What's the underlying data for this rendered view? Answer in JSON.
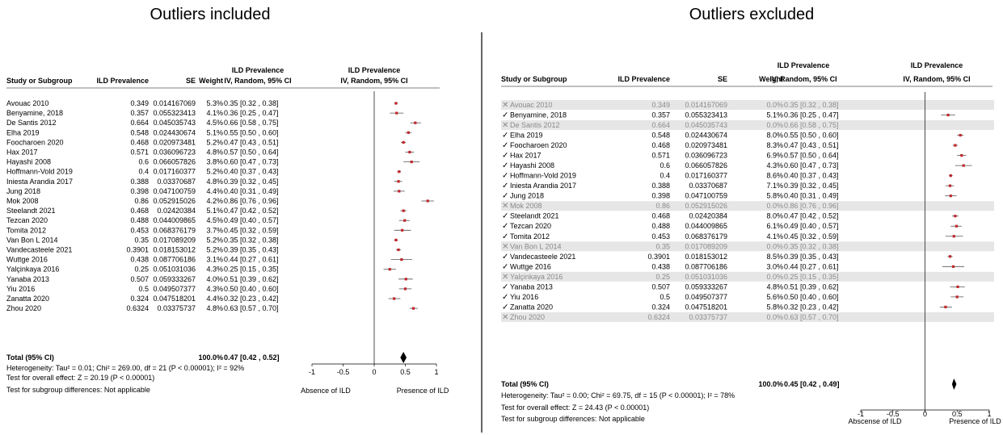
{
  "panels": [
    {
      "heading": "Outliers included",
      "columns": {
        "study": "Study or Subgroup",
        "prev": "ILD Prevalence",
        "se": "SE",
        "weight": "Weight",
        "ci_line1": "ILD Prevalence",
        "ci_line2": "IV, Random, 95% CI",
        "plot_line1": "ILD Prevalence",
        "plot_line2": "IV, Random, 95% CI"
      },
      "rows": [
        {
          "study": "Avouac 2010",
          "prev": "0.349",
          "se": "0.014167069",
          "weight": "5.3%",
          "ci": "0.35 [0.32 , 0.38]",
          "est": 0.35,
          "lo": 0.32,
          "hi": 0.38
        },
        {
          "study": "Benyamine, 2018",
          "prev": "0.357",
          "se": "0.055323413",
          "weight": "4.1%",
          "ci": "0.36 [0.25 , 0.47]",
          "est": 0.36,
          "lo": 0.25,
          "hi": 0.47
        },
        {
          "study": "De Santis 2012",
          "prev": "0.664",
          "se": "0.045035743",
          "weight": "4.5%",
          "ci": "0.66 [0.58 , 0.75]",
          "est": 0.66,
          "lo": 0.58,
          "hi": 0.75
        },
        {
          "study": "Elha 2019",
          "prev": "0.548",
          "se": "0.024430674",
          "weight": "5.1%",
          "ci": "0.55 [0.50 , 0.60]",
          "est": 0.55,
          "lo": 0.5,
          "hi": 0.6
        },
        {
          "study": "Foocharoen 2020",
          "prev": "0.468",
          "se": "0.020973481",
          "weight": "5.2%",
          "ci": "0.47 [0.43 , 0.51]",
          "est": 0.47,
          "lo": 0.43,
          "hi": 0.51
        },
        {
          "study": "Hax 2017",
          "prev": "0.571",
          "se": "0.036096723",
          "weight": "4.8%",
          "ci": "0.57 [0.50 , 0.64]",
          "est": 0.57,
          "lo": 0.5,
          "hi": 0.64
        },
        {
          "study": "Hayashi 2008",
          "prev": "0.6",
          "se": "0.066057826",
          "weight": "3.8%",
          "ci": "0.60 [0.47 , 0.73]",
          "est": 0.6,
          "lo": 0.47,
          "hi": 0.73
        },
        {
          "study": "Hoffmann-Vold 2019",
          "prev": "0.4",
          "se": "0.017160377",
          "weight": "5.2%",
          "ci": "0.40 [0.37 , 0.43]",
          "est": 0.4,
          "lo": 0.37,
          "hi": 0.43
        },
        {
          "study": "Iniesta Arandia 2017",
          "prev": "0.388",
          "se": "0.03370687",
          "weight": "4.8%",
          "ci": "0.39 [0.32 , 0.45]",
          "est": 0.39,
          "lo": 0.32,
          "hi": 0.45
        },
        {
          "study": "Jung 2018",
          "prev": "0.398",
          "se": "0.047100759",
          "weight": "4.4%",
          "ci": "0.40 [0.31 , 0.49]",
          "est": 0.4,
          "lo": 0.31,
          "hi": 0.49
        },
        {
          "study": "Mok 2008",
          "prev": "0.86",
          "se": "0.052915026",
          "weight": "4.2%",
          "ci": "0.86 [0.76 , 0.96]",
          "est": 0.86,
          "lo": 0.76,
          "hi": 0.96
        },
        {
          "study": "Steelandt 2021",
          "prev": "0.468",
          "se": "0.02420384",
          "weight": "5.1%",
          "ci": "0.47 [0.42 , 0.52]",
          "est": 0.47,
          "lo": 0.42,
          "hi": 0.52
        },
        {
          "study": "Tezcan 2020",
          "prev": "0.488",
          "se": "0.044009865",
          "weight": "4.5%",
          "ci": "0.49 [0.40 , 0.57]",
          "est": 0.49,
          "lo": 0.4,
          "hi": 0.57
        },
        {
          "study": "Tomita 2012",
          "prev": "0.453",
          "se": "0.068376179",
          "weight": "3.7%",
          "ci": "0.45 [0.32 , 0.59]",
          "est": 0.45,
          "lo": 0.32,
          "hi": 0.59
        },
        {
          "study": "Van Bon L 2014",
          "prev": "0.35",
          "se": "0.017089209",
          "weight": "5.2%",
          "ci": "0.35 [0.32 , 0.38]",
          "est": 0.35,
          "lo": 0.32,
          "hi": 0.38
        },
        {
          "study": "Vandecasteele 2021",
          "prev": "0.3901",
          "se": "0.018153012",
          "weight": "5.2%",
          "ci": "0.39 [0.35 , 0.43]",
          "est": 0.39,
          "lo": 0.35,
          "hi": 0.43
        },
        {
          "study": "Wuttge 2016",
          "prev": "0.438",
          "se": "0.087706186",
          "weight": "3.1%",
          "ci": "0.44 [0.27 , 0.61]",
          "est": 0.44,
          "lo": 0.27,
          "hi": 0.61
        },
        {
          "study": "Yalçinkaya 2016",
          "prev": "0.25",
          "se": "0.051031036",
          "weight": "4.3%",
          "ci": "0.25 [0.15 , 0.35]",
          "est": 0.25,
          "lo": 0.15,
          "hi": 0.35
        },
        {
          "study": "Yanaba 2013",
          "prev": "0.507",
          "se": "0.059333267",
          "weight": "4.0%",
          "ci": "0.51 [0.39 , 0.62]",
          "est": 0.51,
          "lo": 0.39,
          "hi": 0.62
        },
        {
          "study": "Yiu 2016",
          "prev": "0.5",
          "se": "0.049507377",
          "weight": "4.3%",
          "ci": "0.50 [0.40 , 0.60]",
          "est": 0.5,
          "lo": 0.4,
          "hi": 0.6
        },
        {
          "study": "Zanatta 2020",
          "prev": "0.324",
          "se": "0.047518201",
          "weight": "4.4%",
          "ci": "0.32 [0.23 , 0.42]",
          "est": 0.32,
          "lo": 0.23,
          "hi": 0.42
        },
        {
          "study": "Zhou 2020",
          "prev": "0.6324",
          "se": "0.03375737",
          "weight": "4.8%",
          "ci": "0.63 [0.57 , 0.70]",
          "est": 0.63,
          "lo": 0.57,
          "hi": 0.7
        }
      ],
      "total": {
        "label": "Total (95% CI)",
        "weight": "100.0%",
        "ci": "0.47 [0.42 , 0.52]",
        "est": 0.47,
        "lo": 0.42,
        "hi": 0.52
      },
      "footer": [
        "Heterogeneity: Tau² = 0.01; Chi² = 269.00, df = 21 (P < 0.00001); I² = 92%",
        "Test for overall effect: Z = 20.19 (P < 0.00001)",
        "Test for subgroup differences: Not applicable"
      ],
      "axis": {
        "ticks": [
          "-1",
          "-0.5",
          "0",
          "0.5",
          "1"
        ],
        "tick_values": [
          -1,
          -0.5,
          0,
          0.5,
          1
        ],
        "left_label": "Absence of ILD",
        "right_label": "Presence of ILD"
      }
    },
    {
      "heading": "Outliers excluded",
      "columns": {
        "study": "Study or Subgroup",
        "prev": "ILD Prevalence",
        "se": "SE",
        "weight": "Weight",
        "ci_line1": "ILD Prevalence",
        "ci_line2": "IV, Random, 95% CI",
        "plot_line1": "ILD Prevalence",
        "plot_line2": "IV, Random, 95% CI"
      },
      "rows": [
        {
          "mark": "✕",
          "excluded": true,
          "study": "Avouac 2010",
          "prev": "0.349",
          "se": "0.014167069",
          "weight": "0.0%",
          "ci": "0.35 [0.32 , 0.38]"
        },
        {
          "mark": "✓",
          "excluded": false,
          "study": "Benyamine, 2018",
          "prev": "0.357",
          "se": "0.055323413",
          "weight": "5.1%",
          "ci": "0.36 [0.25 , 0.47]",
          "est": 0.36,
          "lo": 0.25,
          "hi": 0.47
        },
        {
          "mark": "✕",
          "excluded": true,
          "study": "De Santis 2012",
          "prev": "0.664",
          "se": "0.045035743",
          "weight": "0.0%",
          "ci": "0.66 [0.58 , 0.75]"
        },
        {
          "mark": "✓",
          "excluded": false,
          "study": "Elha 2019",
          "prev": "0.548",
          "se": "0.024430674",
          "weight": "8.0%",
          "ci": "0.55 [0.50 , 0.60]",
          "est": 0.55,
          "lo": 0.5,
          "hi": 0.6
        },
        {
          "mark": "✓",
          "excluded": false,
          "study": "Foocharoen 2020",
          "prev": "0.468",
          "se": "0.020973481",
          "weight": "8.3%",
          "ci": "0.47 [0.43 , 0.51]",
          "est": 0.47,
          "lo": 0.43,
          "hi": 0.51
        },
        {
          "mark": "✓",
          "excluded": false,
          "study": "Hax 2017",
          "prev": "0.571",
          "se": "0.036096723",
          "weight": "6.9%",
          "ci": "0.57 [0.50 , 0.64]",
          "est": 0.57,
          "lo": 0.5,
          "hi": 0.64
        },
        {
          "mark": "✓",
          "excluded": false,
          "study": "Hayashi 2008",
          "prev": "0.6",
          "se": "0.066057826",
          "weight": "4.3%",
          "ci": "0.60 [0.47 , 0.73]",
          "est": 0.6,
          "lo": 0.47,
          "hi": 0.73
        },
        {
          "mark": "✓",
          "excluded": false,
          "study": "Hoffmann-Vold 2019",
          "prev": "0.4",
          "se": "0.017160377",
          "weight": "8.6%",
          "ci": "0.40 [0.37 , 0.43]",
          "est": 0.4,
          "lo": 0.37,
          "hi": 0.43
        },
        {
          "mark": "✓",
          "excluded": false,
          "study": "Iniesta Arandia 2017",
          "prev": "0.388",
          "se": "0.03370687",
          "weight": "7.1%",
          "ci": "0.39 [0.32 , 0.45]",
          "est": 0.39,
          "lo": 0.32,
          "hi": 0.45
        },
        {
          "mark": "✓",
          "excluded": false,
          "study": "Jung 2018",
          "prev": "0.398",
          "se": "0.047100759",
          "weight": "5.8%",
          "ci": "0.40 [0.31 , 0.49]",
          "est": 0.4,
          "lo": 0.31,
          "hi": 0.49
        },
        {
          "mark": "✕",
          "excluded": true,
          "study": "Mok 2008",
          "prev": "0.86",
          "se": "0.052915026",
          "weight": "0.0%",
          "ci": "0.86 [0.76 , 0.96]"
        },
        {
          "mark": "✓",
          "excluded": false,
          "study": "Steelandt 2021",
          "prev": "0.468",
          "se": "0.02420384",
          "weight": "8.0%",
          "ci": "0.47 [0.42 , 0.52]",
          "est": 0.47,
          "lo": 0.42,
          "hi": 0.52
        },
        {
          "mark": "✓",
          "excluded": false,
          "study": "Tezcan 2020",
          "prev": "0.488",
          "se": "0.044009865",
          "weight": "6.1%",
          "ci": "0.49 [0.40 , 0.57]",
          "est": 0.49,
          "lo": 0.4,
          "hi": 0.57
        },
        {
          "mark": "✓",
          "excluded": false,
          "study": "Tomita 2012",
          "prev": "0.453",
          "se": "0.068376179",
          "weight": "4.1%",
          "ci": "0.45 [0.32 , 0.59]",
          "est": 0.45,
          "lo": 0.32,
          "hi": 0.59
        },
        {
          "mark": "✕",
          "excluded": true,
          "study": "Van Bon L 2014",
          "prev": "0.35",
          "se": "0.017089209",
          "weight": "0.0%",
          "ci": "0.35 [0.32 , 0.38]"
        },
        {
          "mark": "✓",
          "excluded": false,
          "study": "Vandecasteele 2021",
          "prev": "0.3901",
          "se": "0.018153012",
          "weight": "8.5%",
          "ci": "0.39 [0.35 , 0.43]",
          "est": 0.39,
          "lo": 0.35,
          "hi": 0.43
        },
        {
          "mark": "✓",
          "excluded": false,
          "study": "Wuttge 2016",
          "prev": "0.438",
          "se": "0.087706186",
          "weight": "3.0%",
          "ci": "0.44 [0.27 , 0.61]",
          "est": 0.44,
          "lo": 0.27,
          "hi": 0.61
        },
        {
          "mark": "✕",
          "excluded": true,
          "study": "Yalçinkaya 2016",
          "prev": "0.25",
          "se": "0.051031036",
          "weight": "0.0%",
          "ci": "0.25 [0.15 , 0.35]"
        },
        {
          "mark": "✓",
          "excluded": false,
          "study": "Yanaba 2013",
          "prev": "0.507",
          "se": "0.059333267",
          "weight": "4.8%",
          "ci": "0.51 [0.39 , 0.62]",
          "est": 0.51,
          "lo": 0.39,
          "hi": 0.62
        },
        {
          "mark": "✓",
          "excluded": false,
          "study": "Yiu 2016",
          "prev": "0.5",
          "se": "0.049507377",
          "weight": "5.6%",
          "ci": "0.50 [0.40 , 0.60]",
          "est": 0.5,
          "lo": 0.4,
          "hi": 0.6
        },
        {
          "mark": "✓",
          "excluded": false,
          "study": "Zanatta 2020",
          "prev": "0.324",
          "se": "0.047518201",
          "weight": "5.8%",
          "ci": "0.32 [0.23 , 0.42]",
          "est": 0.32,
          "lo": 0.23,
          "hi": 0.42
        },
        {
          "mark": "✕",
          "excluded": true,
          "study": "Zhou 2020",
          "prev": "0.6324",
          "se": "0.03375737",
          "weight": "0.0%",
          "ci": "0.63 [0.57 , 0.70]"
        }
      ],
      "total": {
        "label": "Total (95% CI)",
        "weight": "100.0%",
        "ci": "0.45 [0.42 , 0.49]",
        "est": 0.45,
        "lo": 0.42,
        "hi": 0.49
      },
      "footer": [
        "Heterogeneity: Tau² = 0.00; Chi² = 69.75, df = 15 (P < 0.00001); I² = 78%",
        "Test for overall effect: Z = 24.43 (P < 0.00001)",
        "Test for subgroup differences: Not applicable"
      ],
      "axis": {
        "ticks": [
          "-1",
          "-0.5",
          "0",
          "0.5",
          "1"
        ],
        "tick_values": [
          -1,
          -0.5,
          0,
          0.5,
          1
        ],
        "left_label": "Abscense of ILD",
        "right_label": "Presence of ILD"
      }
    }
  ],
  "chart_data": [
    {
      "type": "forest",
      "title": "Outliers included",
      "x_range": [
        -1,
        1
      ],
      "studies": [
        "Avouac 2010",
        "Benyamine, 2018",
        "De Santis 2012",
        "Elha 2019",
        "Foocharoen 2020",
        "Hax 2017",
        "Hayashi 2008",
        "Hoffmann-Vold 2019",
        "Iniesta Arandia 2017",
        "Jung 2018",
        "Mok 2008",
        "Steelandt 2021",
        "Tezcan 2020",
        "Tomita 2012",
        "Van Bon L 2014",
        "Vandecasteele 2021",
        "Wuttge 2016",
        "Yalçinkaya 2016",
        "Yanaba 2013",
        "Yiu 2016",
        "Zanatta 2020",
        "Zhou 2020"
      ],
      "estimates": [
        0.35,
        0.36,
        0.66,
        0.55,
        0.47,
        0.57,
        0.6,
        0.4,
        0.39,
        0.4,
        0.86,
        0.47,
        0.49,
        0.45,
        0.35,
        0.39,
        0.44,
        0.25,
        0.51,
        0.5,
        0.32,
        0.63
      ],
      "pooled": {
        "est": 0.47,
        "lo": 0.42,
        "hi": 0.52
      }
    },
    {
      "type": "forest",
      "title": "Outliers excluded",
      "x_range": [
        -1,
        1
      ],
      "studies": [
        "Benyamine, 2018",
        "Elha 2019",
        "Foocharoen 2020",
        "Hax 2017",
        "Hayashi 2008",
        "Hoffmann-Vold 2019",
        "Iniesta Arandia 2017",
        "Jung 2018",
        "Steelandt 2021",
        "Tezcan 2020",
        "Tomita 2012",
        "Vandecasteele 2021",
        "Wuttge 2016",
        "Yanaba 2013",
        "Yiu 2016",
        "Zanatta 2020"
      ],
      "estimates": [
        0.36,
        0.55,
        0.47,
        0.57,
        0.6,
        0.4,
        0.39,
        0.4,
        0.47,
        0.49,
        0.45,
        0.39,
        0.44,
        0.51,
        0.5,
        0.32
      ],
      "pooled": {
        "est": 0.45,
        "lo": 0.42,
        "hi": 0.49
      }
    }
  ],
  "colors": {
    "point": "#c0262c",
    "excluded_row": "#e6e6e6",
    "excluded_text": "#8a8a8a"
  }
}
